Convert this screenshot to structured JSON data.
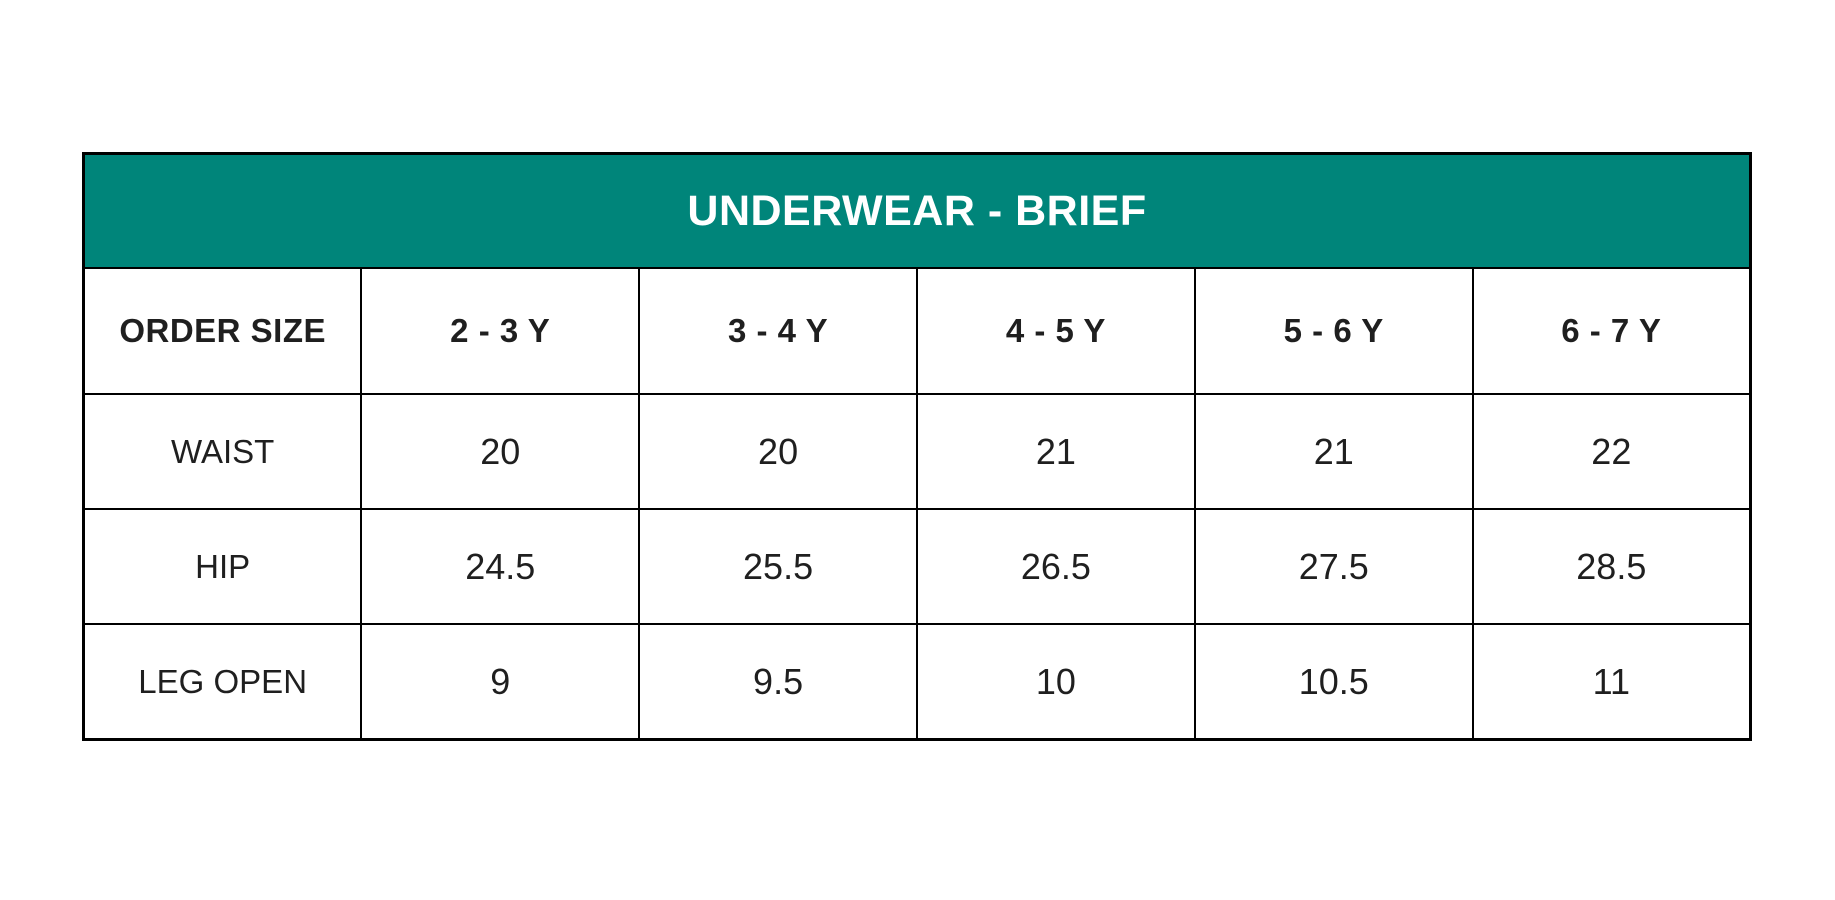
{
  "size_chart": {
    "title": "UNDERWEAR - BRIEF",
    "columns": [
      "ORDER SIZE",
      "2 - 3 Y",
      "3 - 4 Y",
      "4 - 5 Y",
      "5 - 6 Y",
      "6 - 7 Y"
    ],
    "rows": [
      {
        "label": "WAIST",
        "values": [
          "20",
          "20",
          "21",
          "21",
          "22"
        ]
      },
      {
        "label": "HIP",
        "values": [
          "24.5",
          "25.5",
          "26.5",
          "27.5",
          "28.5"
        ]
      },
      {
        "label": "LEG OPEN",
        "values": [
          "9",
          "9.5",
          "10",
          "10.5",
          "11"
        ]
      }
    ],
    "colors": {
      "title_bg": "#00857A",
      "title_text": "#FFFFFF",
      "border": "#000000",
      "cell_text": "#1F1F1F",
      "cell_bg": "#FFFFFF"
    }
  },
  "chart_data": {
    "type": "table",
    "title": "UNDERWEAR - BRIEF",
    "columns": [
      "ORDER SIZE",
      "2 - 3 Y",
      "3 - 4 Y",
      "4 - 5 Y",
      "5 - 6 Y",
      "6 - 7 Y"
    ],
    "rows": [
      [
        "WAIST",
        20,
        20,
        21,
        21,
        22
      ],
      [
        "HIP",
        24.5,
        25.5,
        26.5,
        27.5,
        28.5
      ],
      [
        "LEG OPEN",
        9,
        9.5,
        10,
        10.5,
        11
      ]
    ]
  }
}
